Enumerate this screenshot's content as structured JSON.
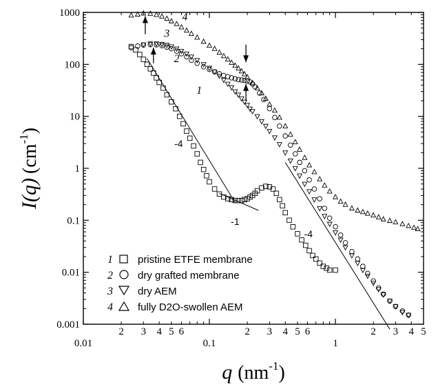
{
  "chart_data": {
    "type": "scatter",
    "xscale": "log",
    "yscale": "log",
    "xlim": [
      0.01,
      5
    ],
    "ylim": [
      0.001,
      1000
    ],
    "x_tick_labels": [
      "0.01",
      "0.1",
      "1"
    ],
    "x_minor_labels": [
      "2",
      "3",
      "4",
      "5",
      "6",
      "2",
      "3",
      "4",
      "5",
      "6",
      "2",
      "3",
      "4",
      "5"
    ],
    "y_tick_labels": [
      "0.001",
      "0.01",
      "0.1",
      "1",
      "10",
      "100",
      "1000"
    ],
    "xlabel": {
      "var": "q",
      "unit": "(nm",
      "exp": "-1",
      "close": ")"
    },
    "ylabel": {
      "var": "I(q)",
      "unit": "(cm",
      "exp": "-1",
      "close": ")"
    },
    "grid": false,
    "legend_position": "bottom-left",
    "series": [
      {
        "number": "1",
        "name": "pristine ETFE membrane",
        "marker": "square",
        "x": [
          0.024,
          0.026,
          0.028,
          0.03,
          0.032,
          0.034,
          0.036,
          0.038,
          0.04,
          0.043,
          0.046,
          0.05,
          0.054,
          0.058,
          0.062,
          0.066,
          0.07,
          0.075,
          0.08,
          0.085,
          0.09,
          0.095,
          0.1,
          0.11,
          0.12,
          0.13,
          0.14,
          0.15,
          0.16,
          0.17,
          0.18,
          0.19,
          0.2,
          0.21,
          0.22,
          0.23,
          0.24,
          0.26,
          0.28,
          0.3,
          0.32,
          0.34,
          0.36,
          0.38,
          0.4,
          0.43,
          0.46,
          0.5,
          0.54,
          0.58,
          0.62,
          0.66,
          0.7,
          0.75,
          0.8,
          0.85,
          0.9,
          1.0
        ],
        "y": [
          220,
          190,
          155,
          125,
          100,
          82,
          68,
          55,
          45,
          35,
          26,
          19,
          14,
          10,
          7.2,
          5.2,
          3.8,
          2.7,
          1.9,
          1.3,
          0.95,
          0.72,
          0.55,
          0.4,
          0.32,
          0.28,
          0.26,
          0.25,
          0.24,
          0.24,
          0.24,
          0.25,
          0.26,
          0.28,
          0.3,
          0.33,
          0.37,
          0.42,
          0.45,
          0.44,
          0.4,
          0.33,
          0.25,
          0.19,
          0.14,
          0.1,
          0.075,
          0.055,
          0.042,
          0.033,
          0.026,
          0.021,
          0.018,
          0.015,
          0.013,
          0.012,
          0.011,
          0.011
        ]
      },
      {
        "number": "2",
        "name": "dry grafted membrane",
        "marker": "circle",
        "x": [
          0.024,
          0.027,
          0.03,
          0.034,
          0.038,
          0.042,
          0.046,
          0.05,
          0.055,
          0.06,
          0.066,
          0.072,
          0.08,
          0.09,
          0.1,
          0.11,
          0.12,
          0.13,
          0.14,
          0.15,
          0.16,
          0.17,
          0.18,
          0.19,
          0.2,
          0.21,
          0.22,
          0.23,
          0.25,
          0.27,
          0.3,
          0.33,
          0.36,
          0.4,
          0.44,
          0.48,
          0.52,
          0.57,
          0.62,
          0.68,
          0.75,
          0.82,
          0.9,
          1.0,
          1.1,
          1.2,
          1.35,
          1.5,
          1.65,
          1.8,
          2.0,
          2.2,
          2.4,
          2.7,
          3.0,
          3.4,
          3.8
        ],
        "y": [
          210,
          225,
          235,
          240,
          238,
          230,
          215,
          200,
          180,
          160,
          140,
          120,
          105,
          90,
          80,
          72,
          66,
          61,
          58,
          55,
          53,
          51,
          50,
          49,
          48,
          46,
          42,
          37,
          28,
          21,
          14,
          9.5,
          6.5,
          4.2,
          2.8,
          1.9,
          1.3,
          0.9,
          0.6,
          0.4,
          0.26,
          0.17,
          0.11,
          0.075,
          0.052,
          0.037,
          0.025,
          0.018,
          0.013,
          0.0095,
          0.0068,
          0.005,
          0.0038,
          0.0028,
          0.0022,
          0.0018,
          0.0015
        ]
      },
      {
        "number": "3",
        "name": "dry AEM",
        "marker": "triangle-down",
        "x": [
          0.03,
          0.034,
          0.038,
          0.042,
          0.046,
          0.05,
          0.055,
          0.06,
          0.066,
          0.072,
          0.08,
          0.09,
          0.1,
          0.11,
          0.12,
          0.13,
          0.14,
          0.15,
          0.16,
          0.17,
          0.18,
          0.19,
          0.2,
          0.21,
          0.22,
          0.24,
          0.26,
          0.28,
          0.3,
          0.33,
          0.36,
          0.4,
          0.44,
          0.48,
          0.52,
          0.57,
          0.62,
          0.68,
          0.75,
          0.82,
          0.9,
          1.0,
          1.1,
          1.2,
          1.35,
          1.5,
          1.65,
          1.8,
          2.0,
          2.2,
          2.4,
          2.7,
          3.0,
          3.4,
          3.8
        ],
        "y": [
          240,
          250,
          250,
          245,
          235,
          220,
          200,
          180,
          160,
          140,
          120,
          100,
          85,
          72,
          60,
          50,
          42,
          36,
          30,
          26,
          22,
          19,
          16.5,
          14,
          12.5,
          10,
          8,
          6.5,
          5.2,
          3.9,
          2.9,
          2.0,
          1.4,
          1.0,
          0.72,
          0.5,
          0.36,
          0.25,
          0.17,
          0.12,
          0.085,
          0.058,
          0.042,
          0.03,
          0.021,
          0.015,
          0.011,
          0.0085,
          0.0062,
          0.0047,
          0.0037,
          0.0028,
          0.0022,
          0.0017,
          0.0015
        ]
      },
      {
        "number": "4",
        "name": "fully D2O-swollen AEM",
        "marker": "triangle-up",
        "x": [
          0.024,
          0.027,
          0.03,
          0.034,
          0.038,
          0.042,
          0.046,
          0.05,
          0.055,
          0.06,
          0.066,
          0.072,
          0.08,
          0.09,
          0.1,
          0.11,
          0.12,
          0.13,
          0.14,
          0.15,
          0.16,
          0.17,
          0.18,
          0.19,
          0.2,
          0.22,
          0.24,
          0.26,
          0.28,
          0.3,
          0.33,
          0.36,
          0.4,
          0.44,
          0.48,
          0.52,
          0.57,
          0.62,
          0.68,
          0.75,
          0.82,
          0.9,
          1.0,
          1.1,
          1.2,
          1.35,
          1.5,
          1.65,
          1.8,
          2.0,
          2.2,
          2.4,
          2.7,
          3.0,
          3.4,
          3.8,
          4.2,
          4.5
        ],
        "y": [
          880,
          920,
          960,
          950,
          900,
          840,
          760,
          680,
          600,
          520,
          450,
          390,
          330,
          275,
          230,
          200,
          170,
          145,
          125,
          108,
          95,
          84,
          74,
          65,
          57,
          44,
          35,
          28,
          22,
          17,
          13,
          9.5,
          6.5,
          4.5,
          3.2,
          2.3,
          1.6,
          1.15,
          0.85,
          0.62,
          0.47,
          0.36,
          0.28,
          0.23,
          0.2,
          0.17,
          0.155,
          0.145,
          0.135,
          0.125,
          0.115,
          0.105,
          0.098,
          0.092,
          0.085,
          0.078,
          0.072,
          0.068
        ]
      }
    ],
    "curve_labels": [
      {
        "text": "1",
        "x": 0.083,
        "y": 27
      },
      {
        "text": "2",
        "x": 0.055,
        "y": 110
      },
      {
        "text": "3",
        "x": 0.046,
        "y": 340
      },
      {
        "text": "4",
        "x": 0.064,
        "y": 700
      }
    ],
    "slope_lines": [
      {
        "label": "-4",
        "x1": 0.032,
        "y1": 130,
        "x2": 0.16,
        "y2": 0.22,
        "label_x": 0.057,
        "label_y": 3.0
      },
      {
        "label": "-1",
        "x1": 0.12,
        "y1": 0.33,
        "x2": 0.245,
        "y2": 0.155,
        "label_x": 0.16,
        "label_y": 0.095
      },
      {
        "label": "-4",
        "x1": 0.4,
        "y1": 1.3,
        "x2": 2.7,
        "y2": 0.0008,
        "label_x": 0.61,
        "label_y": 0.055
      }
    ],
    "arrows": [
      {
        "direction": "up",
        "x": 0.031,
        "y_from": 380,
        "y_to": 850
      },
      {
        "direction": "up",
        "x": 0.036,
        "y_from": 105,
        "y_to": 210
      },
      {
        "direction": "down",
        "x": 0.195,
        "y_from": 240,
        "y_to": 110
      },
      {
        "direction": "up",
        "x": 0.195,
        "y_from": 20,
        "y_to": 42
      }
    ]
  }
}
